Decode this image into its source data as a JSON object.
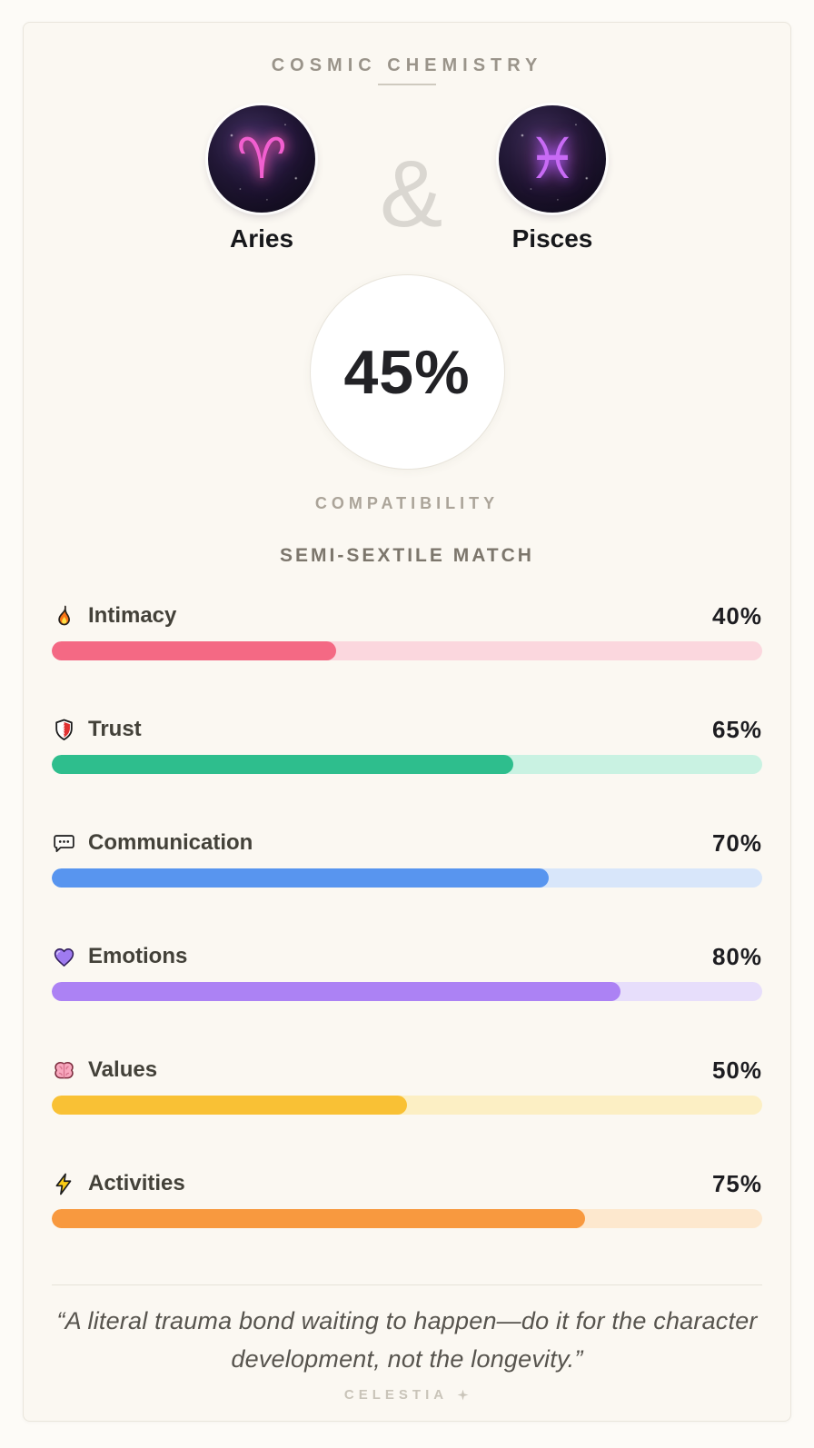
{
  "header": {
    "title": "COSMIC CHEMISTRY"
  },
  "signs": {
    "left": {
      "name": "Aries",
      "symbol": "♈"
    },
    "right": {
      "name": "Pisces",
      "symbol": "♓"
    },
    "separator": "&"
  },
  "compatibility": {
    "score": "45%",
    "label": "COMPATIBILITY",
    "match_type": "SEMI-SEXTILE MATCH"
  },
  "stats": {
    "items": [
      {
        "icon": "fire-icon",
        "label": "Intimacy",
        "percent": "40%",
        "value": 40,
        "fill": "#F46984",
        "track": "#FBD7DE"
      },
      {
        "icon": "shield-icon",
        "label": "Trust",
        "percent": "65%",
        "value": 65,
        "fill": "#2EBE8D",
        "track": "#C9F2E2"
      },
      {
        "icon": "speech-bubble-icon",
        "label": "Communication",
        "percent": "70%",
        "value": 70,
        "fill": "#5895EF",
        "track": "#D8E6FA"
      },
      {
        "icon": "purple-heart-icon",
        "label": "Emotions",
        "percent": "80%",
        "value": 80,
        "fill": "#AC82F4",
        "track": "#E7DEFB"
      },
      {
        "icon": "brain-icon",
        "label": "Values",
        "percent": "50%",
        "value": 50,
        "fill": "#F9C135",
        "track": "#FCEFC4"
      },
      {
        "icon": "lightning-icon",
        "label": "Activities",
        "percent": "75%",
        "value": 75,
        "fill": "#F8993F",
        "track": "#FDE8CE"
      }
    ]
  },
  "quote": {
    "text": "“A literal trauma bond waiting to happen—do it for the character development, not the longevity.”"
  },
  "footer": {
    "brand": "CELESTIA"
  }
}
